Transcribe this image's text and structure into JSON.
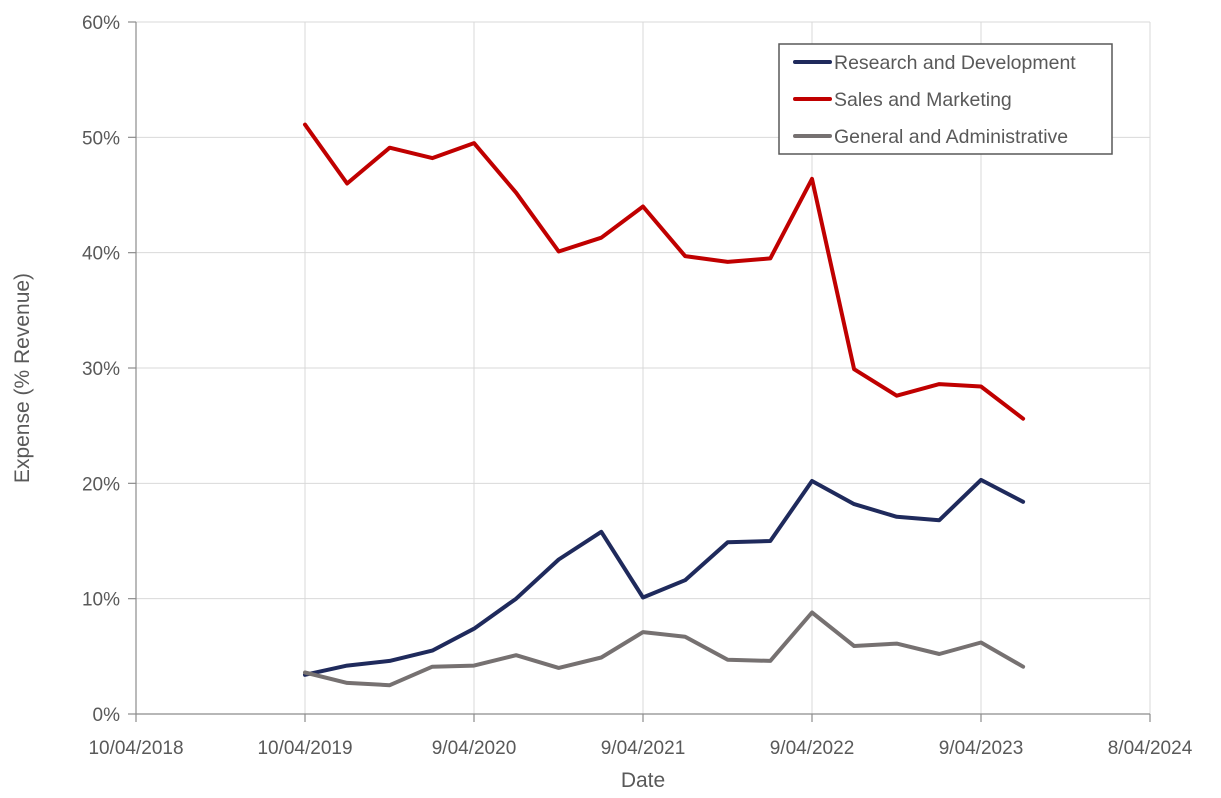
{
  "chart_data": {
    "type": "line",
    "title": "",
    "xlabel": "Date",
    "ylabel": "Expense (% Revenue)",
    "x_ticks": [
      "10/04/2018",
      "10/04/2019",
      "9/04/2020",
      "9/04/2021",
      "9/04/2022",
      "9/04/2023",
      "8/04/2024"
    ],
    "xlim": [
      "2018-04-10",
      "2024-04-08"
    ],
    "y_ticks": [
      "0%",
      "10%",
      "20%",
      "30%",
      "40%",
      "50%",
      "60%"
    ],
    "ylim": [
      0,
      60
    ],
    "y_unit": "%",
    "grid": true,
    "legend_position": "top-right",
    "x": [
      "2019-04-10",
      "2019-07-10",
      "2019-10-10",
      "2020-01-10",
      "2020-04-09",
      "2020-07-09",
      "2020-10-09",
      "2021-01-09",
      "2021-04-09",
      "2021-07-09",
      "2021-10-09",
      "2022-01-09",
      "2022-04-09",
      "2022-07-09",
      "2022-10-09",
      "2023-01-09",
      "2023-04-09",
      "2023-07-09"
    ],
    "series": [
      {
        "name": "Research and Development",
        "color": "#1f2a5c",
        "values": [
          3.4,
          4.2,
          4.6,
          5.5,
          7.4,
          10.0,
          13.4,
          15.8,
          10.1,
          11.6,
          14.9,
          15.0,
          20.2,
          18.2,
          17.1,
          16.8,
          20.3,
          18.4
        ]
      },
      {
        "name": "Sales and Marketing",
        "color": "#c00000",
        "values": [
          51.1,
          46.0,
          49.1,
          48.2,
          49.5,
          45.2,
          40.1,
          41.3,
          44.0,
          39.7,
          39.2,
          39.5,
          46.4,
          29.9,
          27.6,
          28.6,
          28.4,
          25.6
        ]
      },
      {
        "name": "General and Administrative",
        "color": "#767171",
        "values": [
          3.6,
          2.7,
          2.5,
          4.1,
          4.2,
          5.1,
          4.0,
          4.9,
          7.1,
          6.7,
          4.7,
          4.6,
          8.8,
          5.9,
          6.1,
          5.2,
          6.2,
          4.1
        ]
      }
    ]
  }
}
